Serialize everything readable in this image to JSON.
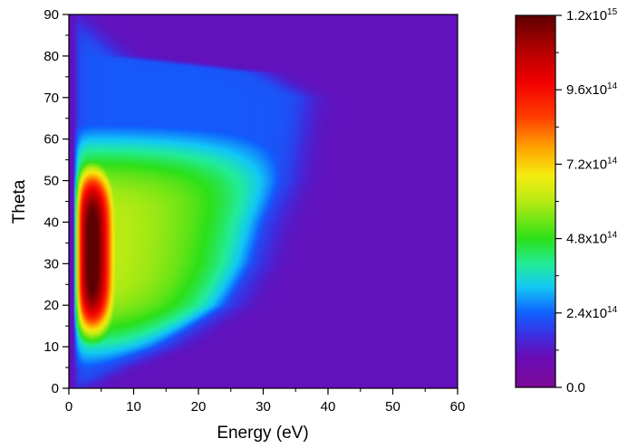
{
  "chart_data": {
    "type": "heatmap",
    "title": "",
    "xlabel": "Energy (eV)",
    "ylabel": "Theta",
    "xlim": [
      0,
      60
    ],
    "ylim": [
      0,
      90
    ],
    "x_ticks": [
      0,
      10,
      20,
      30,
      40,
      50,
      60
    ],
    "x_tick_labels": [
      "0",
      "10",
      "20",
      "30",
      "40",
      "50",
      "60"
    ],
    "y_ticks": [
      0,
      10,
      20,
      30,
      40,
      50,
      60,
      70,
      80,
      90
    ],
    "y_tick_labels": [
      "0",
      "10",
      "20",
      "30",
      "40",
      "50",
      "60",
      "70",
      "80",
      "90"
    ],
    "colorbar": {
      "min": 0,
      "max": 1200000000000000.0,
      "ticks": [
        {
          "value": 0,
          "mantissa": "0.0",
          "exponent": ""
        },
        {
          "value": 240000000000000.0,
          "mantissa": "2.4x10",
          "exponent": "14"
        },
        {
          "value": 480000000000000.0,
          "mantissa": "4.8x10",
          "exponent": "14"
        },
        {
          "value": 720000000000000.0,
          "mantissa": "7.2x10",
          "exponent": "14"
        },
        {
          "value": 960000000000000.0,
          "mantissa": "9.6x10",
          "exponent": "14"
        },
        {
          "value": 1200000000000000.0,
          "mantissa": "1.2x10",
          "exponent": "15"
        }
      ]
    },
    "colormap": [
      {
        "t": 0.0,
        "color": "#7d0a97"
      },
      {
        "t": 0.08,
        "color": "#6a0bb5"
      },
      {
        "t": 0.14,
        "color": "#3c2ee0"
      },
      {
        "t": 0.2,
        "color": "#1060ff"
      },
      {
        "t": 0.27,
        "color": "#12c8f5"
      },
      {
        "t": 0.33,
        "color": "#22ec9a"
      },
      {
        "t": 0.4,
        "color": "#2ce018"
      },
      {
        "t": 0.5,
        "color": "#b8ea14"
      },
      {
        "t": 0.57,
        "color": "#f5ec10"
      },
      {
        "t": 0.64,
        "color": "#ffa800"
      },
      {
        "t": 0.73,
        "color": "#ff3a00"
      },
      {
        "t": 0.82,
        "color": "#f20000"
      },
      {
        "t": 0.91,
        "color": "#b00000"
      },
      {
        "t": 1.0,
        "color": "#5e0000"
      }
    ],
    "intensity_peak": 1150000000000000.0,
    "intensity_region_max_energy_vs_theta": [
      {
        "theta": 0,
        "energy": 1.5
      },
      {
        "theta": 5,
        "energy": 8
      },
      {
        "theta": 10,
        "energy": 16
      },
      {
        "theta": 20,
        "energy": 26
      },
      {
        "theta": 30,
        "energy": 30
      },
      {
        "theta": 40,
        "energy": 32
      },
      {
        "theta": 50,
        "energy": 35
      },
      {
        "theta": 60,
        "energy": 36
      },
      {
        "theta": 70,
        "energy": 37
      },
      {
        "theta": 76,
        "energy": 30
      },
      {
        "theta": 80,
        "energy": 8
      },
      {
        "theta": 90,
        "energy": 0
      }
    ]
  }
}
